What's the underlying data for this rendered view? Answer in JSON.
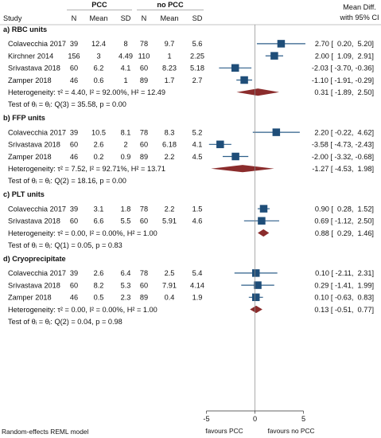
{
  "chart_data": {
    "type": "forest",
    "header": {
      "group1": "PCC",
      "group2": "no PCC",
      "columns": [
        "Study",
        "N",
        "Mean",
        "SD",
        "N",
        "Mean",
        "SD"
      ],
      "effect_line1": "Mean Diff.",
      "effect_line2": "with 95% CI"
    },
    "subgroups": [
      {
        "title": "a) RBC units",
        "studies": [
          {
            "study": "Colavecchia 2017",
            "n1": "39",
            "mean1": "12.4",
            "sd1": "8",
            "n2": "78",
            "mean2": "9.7",
            "sd2": "5.6",
            "est": 2.7,
            "lo": 0.2,
            "hi": 5.2,
            "text": "2.70 [  0.20,  5.20]"
          },
          {
            "study": "Kirchner 2014",
            "n1": "156",
            "mean1": "3",
            "sd1": "4.49",
            "n2": "110",
            "mean2": "1",
            "sd2": "2.25",
            "est": 2.0,
            "lo": 1.09,
            "hi": 2.91,
            "text": "2.00 [  1.09,  2.91]"
          },
          {
            "study": "Srivastava 2018",
            "n1": "60",
            "mean1": "6.2",
            "sd1": "4.1",
            "n2": "60",
            "mean2": "8.23",
            "sd2": "5.18",
            "est": -2.03,
            "lo": -3.7,
            "hi": -0.36,
            "text": "-2.03 [ -3.70, -0.36]"
          },
          {
            "study": "Zamper 2018",
            "n1": "46",
            "mean1": "0.6",
            "sd1": "1",
            "n2": "89",
            "mean2": "1.7",
            "sd2": "2.7",
            "est": -1.1,
            "lo": -1.91,
            "hi": -0.29,
            "text": "-1.10 [ -1.91, -0.29]"
          }
        ],
        "heterogeneity": "Heterogeneity: τ² = 4.40, I² = 92.00%, H² = 12.49",
        "pooled": {
          "est": 0.31,
          "lo": -1.89,
          "hi": 2.5,
          "text": "0.31 [ -1.89,  2.50]"
        },
        "test": "Test of θᵢ = θⱼ: Q(3) = 35.58, p = 0.00"
      },
      {
        "title": "b) FFP units",
        "studies": [
          {
            "study": "Colavecchia 2017",
            "n1": "39",
            "mean1": "10.5",
            "sd1": "8.1",
            "n2": "78",
            "mean2": "8.3",
            "sd2": "5.2",
            "est": 2.2,
            "lo": -0.22,
            "hi": 4.62,
            "text": "2.20 [ -0.22,  4.62]"
          },
          {
            "study": "Srivastava 2018",
            "n1": "60",
            "mean1": "2.6",
            "sd1": "2",
            "n2": "60",
            "mean2": "6.18",
            "sd2": "4.1",
            "est": -3.58,
            "lo": -4.73,
            "hi": -2.43,
            "text": "-3.58 [ -4.73, -2.43]"
          },
          {
            "study": "Zamper 2018",
            "n1": "46",
            "mean1": "0.2",
            "sd1": "0.9",
            "n2": "89",
            "mean2": "2.2",
            "sd2": "4.5",
            "est": -2.0,
            "lo": -3.32,
            "hi": -0.68,
            "text": "-2.00 [ -3.32, -0.68]"
          }
        ],
        "heterogeneity": "Heterogeneity: τ² = 7.52, I² = 92.71%, H² = 13.71",
        "pooled": {
          "est": -1.27,
          "lo": -4.53,
          "hi": 1.98,
          "text": "-1.27 [ -4.53,  1.98]"
        },
        "test": "Test of θᵢ = θⱼ: Q(2) = 18.16, p = 0.00"
      },
      {
        "title": "c) PLT units",
        "studies": [
          {
            "study": "Colavecchia 2017",
            "n1": "39",
            "mean1": "3.1",
            "sd1": "1.8",
            "n2": "78",
            "mean2": "2.2",
            "sd2": "1.5",
            "est": 0.9,
            "lo": 0.28,
            "hi": 1.52,
            "text": "0.90 [  0.28,  1.52]"
          },
          {
            "study": "Srivastava 2018",
            "n1": "60",
            "mean1": "6.6",
            "sd1": "5.5",
            "n2": "60",
            "mean2": "5.91",
            "sd2": "4.6",
            "est": 0.69,
            "lo": -1.12,
            "hi": 2.5,
            "text": "0.69 [ -1.12,  2.50]"
          }
        ],
        "heterogeneity": "Heterogeneity: τ² = 0.00, I² = 0.00%, H² = 1.00",
        "pooled": {
          "est": 0.88,
          "lo": 0.29,
          "hi": 1.46,
          "text": "0.88 [  0.29,  1.46]"
        },
        "test": "Test of θᵢ = θⱼ: Q(1) = 0.05, p = 0.83"
      },
      {
        "title": "d) Cryoprecipitate",
        "studies": [
          {
            "study": "Colavecchia 2017",
            "n1": "39",
            "mean1": "2.6",
            "sd1": "6.4",
            "n2": "78",
            "mean2": "2.5",
            "sd2": "5.4",
            "est": 0.1,
            "lo": -2.11,
            "hi": 2.31,
            "text": "0.10 [ -2.11,  2.31]"
          },
          {
            "study": "Srivastava 2018",
            "n1": "60",
            "mean1": "8.2",
            "sd1": "5.3",
            "n2": "60",
            "mean2": "7.91",
            "sd2": "4.14",
            "est": 0.29,
            "lo": -1.41,
            "hi": 1.99,
            "text": "0.29 [ -1.41,  1.99]"
          },
          {
            "study": "Zamper 2018",
            "n1": "46",
            "mean1": "0.5",
            "sd1": "2.3",
            "n2": "89",
            "mean2": "0.4",
            "sd2": "1.9",
            "est": 0.1,
            "lo": -0.63,
            "hi": 0.83,
            "text": "0.10 [ -0.63,  0.83]"
          }
        ],
        "heterogeneity": "Heterogeneity: τ² = 0.00, I² = 0.00%, H² = 1.00",
        "pooled": {
          "est": 0.13,
          "lo": -0.51,
          "hi": 0.77,
          "text": "0.13 [ -0.51,  0.77]"
        },
        "test": "Test of θᵢ = θⱼ: Q(2) = 0.04, p = 0.98"
      }
    ],
    "x_axis": {
      "ticks": [
        -5,
        0,
        5
      ],
      "tick_labels": [
        "-5",
        "0",
        "5"
      ],
      "xlim": [
        -5.5,
        6
      ],
      "ref_line": 0
    },
    "favours_left": "favours PCC",
    "favours_right": "favours no PCC",
    "footnote": "Random-effects REML model",
    "colors": {
      "marker": "#1f4e79",
      "ci_line": "#2e5f8a",
      "diamond": "#8b2c2c",
      "text": "#111111",
      "rule": "#888888"
    }
  }
}
